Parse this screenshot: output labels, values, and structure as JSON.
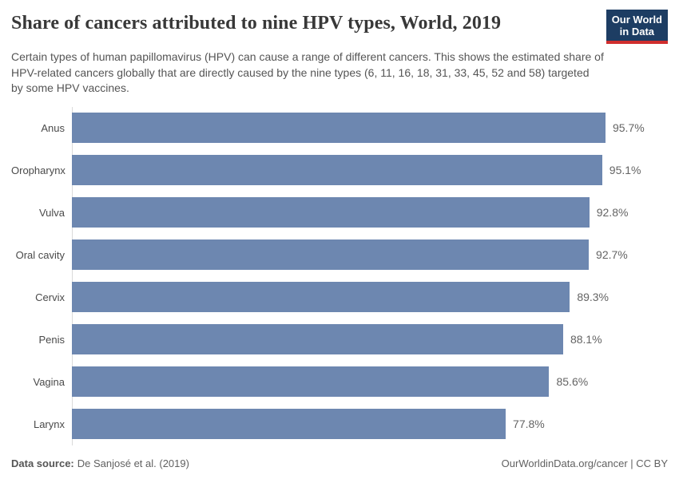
{
  "header": {
    "title": "Share of cancers attributed to nine HPV types, World, 2019",
    "subtitle": "Certain types of human papillomavirus (HPV) can cause a range of different cancers. This shows the estimated share of HPV-related cancers globally that are directly caused by the nine types (6, 11, 16, 18, 31, 33, 45, 52 and 58) targeted by some HPV vaccines.",
    "logo": {
      "line1": "Our World",
      "line2": "in Data",
      "bg_color": "#1d3d63",
      "stripe_color": "#d02e2e"
    }
  },
  "chart_data": {
    "type": "bar",
    "orientation": "horizontal",
    "title": "Share of cancers attributed to nine HPV types, World, 2019",
    "categories": [
      "Anus",
      "Oropharynx",
      "Vulva",
      "Oral cavity",
      "Cervix",
      "Penis",
      "Vagina",
      "Larynx"
    ],
    "values": [
      95.7,
      95.1,
      92.8,
      92.7,
      89.3,
      88.1,
      85.6,
      77.8
    ],
    "value_labels": [
      "95.7%",
      "95.1%",
      "92.8%",
      "92.7%",
      "89.3%",
      "88.1%",
      "85.6%",
      "77.8%"
    ],
    "xlabel": "",
    "ylabel": "",
    "xlim": [
      0,
      100
    ],
    "bar_color": "#6d87b0",
    "grid": false,
    "legend": false
  },
  "footer": {
    "datasource_label": "Data source:",
    "datasource_value": "De Sanjosé et al. (2019)",
    "citation": "OurWorldinData.org/cancer | CC BY"
  }
}
